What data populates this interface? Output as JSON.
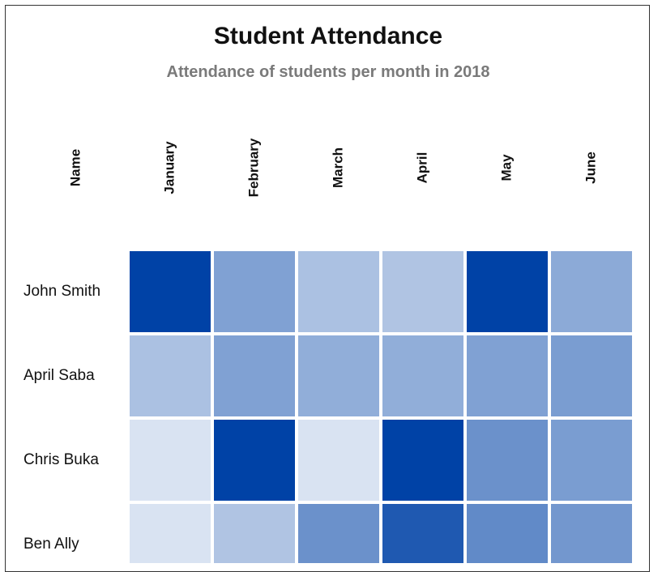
{
  "chart_data": {
    "type": "heatmap",
    "title": "Student Attendance",
    "subtitle": "Attendance of students per month in 2018",
    "row_header": "Name",
    "columns": [
      "January",
      "February",
      "March",
      "April",
      "May",
      "June"
    ],
    "rows": [
      "John Smith",
      "April Saba",
      "Chris Buka",
      "Ben Ally"
    ],
    "values": [
      [
        1.0,
        0.5,
        0.33,
        0.31,
        1.0,
        0.45
      ],
      [
        0.33,
        0.5,
        0.43,
        0.43,
        0.5,
        0.52
      ],
      [
        0.15,
        1.0,
        0.15,
        1.0,
        0.58,
        0.52
      ],
      [
        0.15,
        0.31,
        0.58,
        0.88,
        0.62,
        0.55
      ]
    ],
    "color_scale": {
      "low": "#ffffff",
      "high": "#0042a6"
    },
    "grid": false,
    "legend": "none"
  }
}
